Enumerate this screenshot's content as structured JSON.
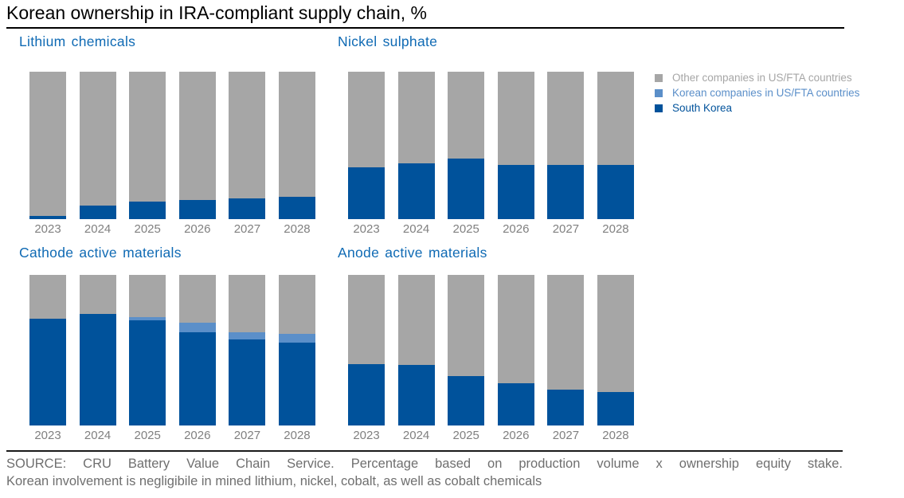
{
  "title": "Korean ownership in IRA-compliant supply chain, %",
  "colors": {
    "south_korea": "#00529b",
    "korean_fta": "#5b8fc9",
    "other": "#a6a6a6",
    "chart_title_blue": "#0f6ab4",
    "axis_label_gray": "#808080",
    "footer_text_gray": "#6f6f6f",
    "rule_black": "#000000"
  },
  "legend": {
    "position": "top-right",
    "items": [
      {
        "label": "Other companies in US/FTA countries",
        "color": "#a6a6a6"
      },
      {
        "label": "Korean companies in US/FTA countries",
        "color": "#5b8fc9"
      },
      {
        "label": "South Korea",
        "color": "#00529b"
      }
    ]
  },
  "footer": {
    "line1": "SOURCE: CRU Battery Value Chain Service. Percentage based on production volume x ownership equity stake.",
    "line2": "Korean involvement is negligibile in mined lithium, nickel, cobalt, as well as cobalt chemicals"
  },
  "chart_data": [
    {
      "type": "bar",
      "stacked": true,
      "title": "Lithium chemicals",
      "unit": "%",
      "ylim": [
        0,
        100
      ],
      "grid": false,
      "categories": [
        "2023",
        "2024",
        "2025",
        "2026",
        "2027",
        "2028"
      ],
      "series": [
        {
          "name": "South Korea",
          "color": "#00529b",
          "values": [
            2,
            9,
            12,
            13,
            14,
            15
          ]
        },
        {
          "name": "Korean companies in US/FTA countries",
          "color": "#5b8fc9",
          "values": [
            0,
            0,
            0,
            0,
            0,
            0
          ]
        },
        {
          "name": "Other companies in US/FTA countries",
          "color": "#a6a6a6",
          "values": [
            98,
            91,
            88,
            87,
            86,
            85
          ]
        }
      ]
    },
    {
      "type": "bar",
      "stacked": true,
      "title": "Nickel sulphate",
      "unit": "%",
      "ylim": [
        0,
        100
      ],
      "grid": false,
      "categories": [
        "2023",
        "2024",
        "2025",
        "2026",
        "2027",
        "2028"
      ],
      "series": [
        {
          "name": "South Korea",
          "color": "#00529b",
          "values": [
            35,
            38,
            41,
            37,
            37,
            37
          ]
        },
        {
          "name": "Korean companies in US/FTA countries",
          "color": "#5b8fc9",
          "values": [
            0,
            0,
            0,
            0,
            0,
            0
          ]
        },
        {
          "name": "Other companies in US/FTA countries",
          "color": "#a6a6a6",
          "values": [
            65,
            62,
            59,
            63,
            63,
            63
          ]
        }
      ]
    },
    {
      "type": "bar",
      "stacked": true,
      "title": "Cathode active materials",
      "unit": "%",
      "ylim": [
        0,
        100
      ],
      "grid": false,
      "categories": [
        "2023",
        "2024",
        "2025",
        "2026",
        "2027",
        "2028"
      ],
      "series": [
        {
          "name": "South Korea",
          "color": "#00529b",
          "values": [
            71,
            74,
            70,
            62,
            57,
            55
          ]
        },
        {
          "name": "Korean companies in US/FTA countries",
          "color": "#5b8fc9",
          "values": [
            0,
            0,
            2,
            6,
            5,
            6
          ]
        },
        {
          "name": "Other companies in US/FTA countries",
          "color": "#a6a6a6",
          "values": [
            29,
            26,
            28,
            32,
            38,
            39
          ]
        }
      ]
    },
    {
      "type": "bar",
      "stacked": true,
      "title": "Anode active materials",
      "unit": "%",
      "ylim": [
        0,
        100
      ],
      "grid": false,
      "categories": [
        "2023",
        "2024",
        "2025",
        "2026",
        "2027",
        "2028"
      ],
      "series": [
        {
          "name": "South Korea",
          "color": "#00529b",
          "values": [
            41,
            40,
            33,
            28,
            24,
            22
          ]
        },
        {
          "name": "Korean companies in US/FTA countries",
          "color": "#5b8fc9",
          "values": [
            0,
            0,
            0,
            0,
            0,
            0
          ]
        },
        {
          "name": "Other companies in US/FTA countries",
          "color": "#a6a6a6",
          "values": [
            59,
            60,
            67,
            72,
            76,
            78
          ]
        }
      ]
    }
  ]
}
